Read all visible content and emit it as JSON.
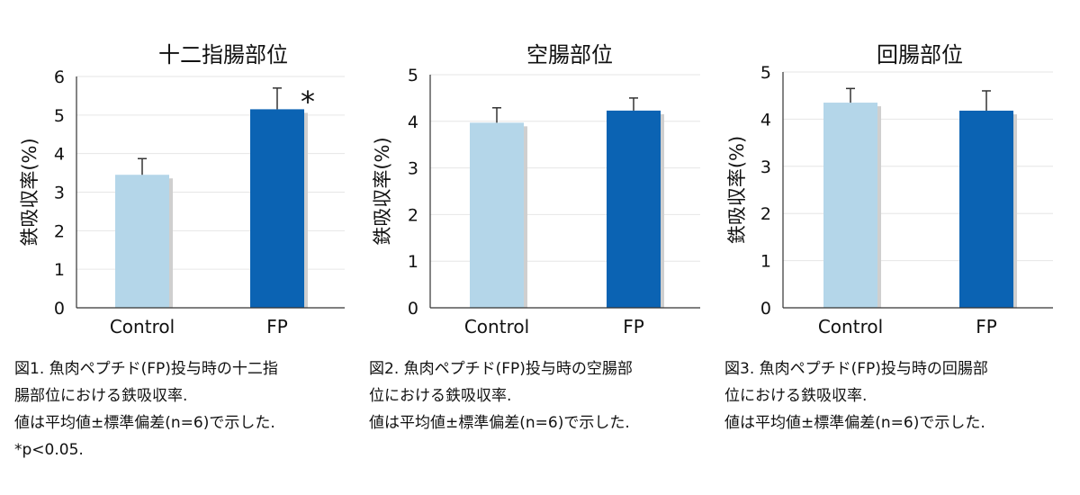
{
  "colors": {
    "control": "#b4d6e9",
    "fp": "#0b63b3",
    "axis": "#333333",
    "grid": "#e6e6e6",
    "shadow": "#cfcfcf",
    "text": "#111111"
  },
  "chart_data": [
    {
      "type": "bar",
      "title": "十二指腸部位",
      "ylabel": "鉄吸収率(%)",
      "xlabel": "",
      "categories": [
        "Control",
        "FP"
      ],
      "values": [
        3.45,
        5.15
      ],
      "error": [
        0.42,
        0.55
      ],
      "ylim": [
        0,
        6
      ],
      "yticks": [
        "0",
        "1",
        "2",
        "3",
        "4",
        "5",
        "6"
      ],
      "significance": [
        "",
        "*"
      ],
      "grid": true,
      "legend": "none"
    },
    {
      "type": "bar",
      "title": "空腸部位",
      "ylabel": "鉄吸収率(%)",
      "xlabel": "",
      "categories": [
        "Control",
        "FP"
      ],
      "values": [
        3.97,
        4.23
      ],
      "error": [
        0.32,
        0.27
      ],
      "ylim": [
        0,
        5
      ],
      "yticks": [
        "0",
        "1",
        "2",
        "3",
        "4",
        "5"
      ],
      "significance": [
        "",
        ""
      ],
      "grid": true,
      "legend": "none"
    },
    {
      "type": "bar",
      "title": "回腸部位",
      "ylabel": "鉄吸収率(%)",
      "xlabel": "",
      "categories": [
        "Control",
        "FP"
      ],
      "values": [
        4.35,
        4.18
      ],
      "error": [
        0.3,
        0.42
      ],
      "ylim": [
        0,
        5
      ],
      "yticks": [
        "0",
        "1",
        "2",
        "3",
        "4",
        "5"
      ],
      "significance": [
        "",
        ""
      ],
      "grid": true,
      "legend": "none"
    }
  ],
  "captions": [
    {
      "lines": [
        "図1. 魚肉ペプチド(FP)投与時の十二指",
        "腸部位における鉄吸収率.",
        "値は平均値±標準偏差(n=6)で示した.",
        "*p<0.05."
      ]
    },
    {
      "lines": [
        "図2. 魚肉ペプチド(FP)投与時の空腸部",
        "位における鉄吸収率.",
        "値は平均値±標準偏差(n=6)で示した."
      ]
    },
    {
      "lines": [
        "図3. 魚肉ペプチド(FP)投与時の回腸部",
        "位における鉄吸収率.",
        "値は平均値±標準偏差(n=6)で示した."
      ]
    }
  ]
}
